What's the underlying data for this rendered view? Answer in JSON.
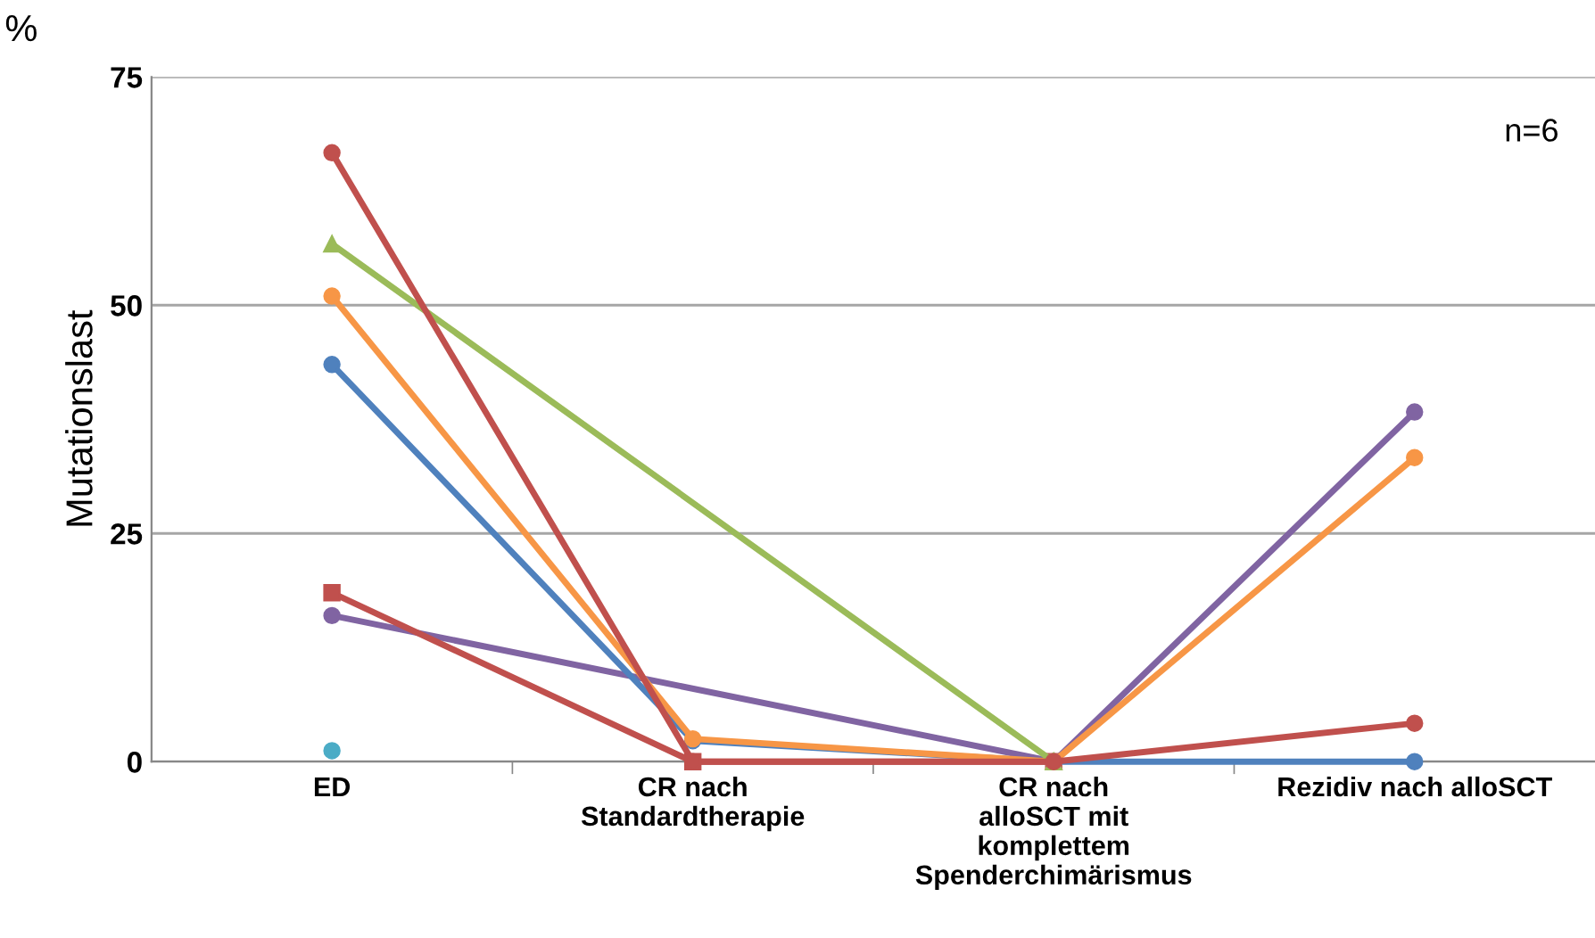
{
  "chart_data": {
    "type": "line",
    "ylabel": "Mutationslast",
    "categories": [
      "ED",
      "CR nach\nStandardtherapie",
      "CR nach\nalloSCT mit\nkomplettem\nSpenderchimärismus",
      "Rezidiv nach alloSCT"
    ],
    "series": [
      {
        "color": "#c0504d",
        "marker": "circle",
        "values": [
          66.7,
          0,
          0,
          4.2
        ]
      },
      {
        "color": "#9bbb59",
        "marker": "triangle",
        "values": [
          56.7,
          null,
          0,
          null
        ]
      },
      {
        "color": "#f79646",
        "marker": "circle",
        "values": [
          51,
          2.5,
          0,
          33.3
        ]
      },
      {
        "color": "#4f81bd",
        "marker": "circle",
        "values": [
          43.5,
          2.3,
          0,
          0
        ]
      },
      {
        "color": "#c0504d",
        "marker": "square",
        "values": [
          18.5,
          0,
          0,
          null
        ]
      },
      {
        "color": "#8064a2",
        "marker": "circle",
        "values": [
          16,
          null,
          0,
          38.3
        ]
      },
      {
        "color": "#4bacc6",
        "marker": "circle",
        "values": [
          1.2,
          null,
          null,
          null
        ]
      }
    ],
    "ylim": [
      0,
      75
    ],
    "yticks": [
      0,
      25,
      50,
      75
    ],
    "grid": "y",
    "legend": false,
    "annotations": [
      "%",
      "n=6"
    ]
  }
}
